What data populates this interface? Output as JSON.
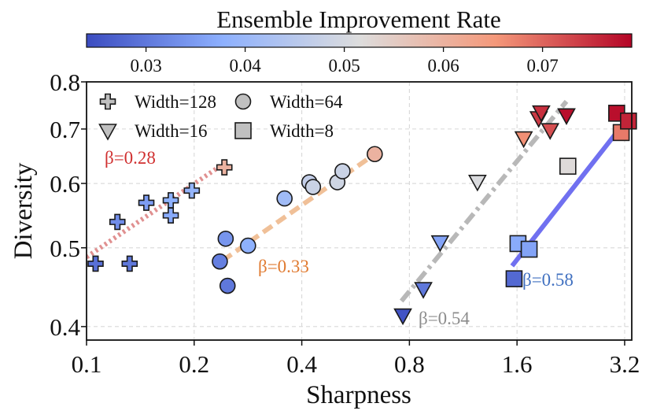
{
  "chart_data": {
    "type": "scatter",
    "title": "Ensemble Improvement Rate",
    "xlabel": "Sharpness",
    "ylabel": "Diversity",
    "xscale": "log2",
    "yscale": "log",
    "xlim": [
      0.1,
      3.35
    ],
    "ylim": [
      0.385,
      0.8
    ],
    "xticks": [
      {
        "value": 0.1,
        "label": "0.1"
      },
      {
        "value": 0.2,
        "label": "0.2"
      },
      {
        "value": 0.4,
        "label": "0.4"
      },
      {
        "value": 0.8,
        "label": "0.8"
      },
      {
        "value": 1.6,
        "label": "1.6"
      },
      {
        "value": 3.2,
        "label": "3.2"
      }
    ],
    "yticks": [
      {
        "value": 0.4,
        "label": "0.4"
      },
      {
        "value": 0.5,
        "label": "0.5"
      },
      {
        "value": 0.6,
        "label": "0.6"
      },
      {
        "value": 0.7,
        "label": "0.7"
      },
      {
        "value": 0.8,
        "label": "0.8"
      }
    ],
    "grid": true,
    "legend": {
      "placement": "top-left",
      "entries": [
        {
          "label": "Width=128",
          "marker": "plus"
        },
        {
          "label": "Width=64",
          "marker": "circle"
        },
        {
          "label": "Width=16",
          "marker": "triangle-down"
        },
        {
          "label": "Width=8",
          "marker": "square"
        }
      ]
    },
    "colorbar": {
      "label": "Ensemble Improvement Rate",
      "range": [
        0.024,
        0.079
      ],
      "colormap": "coolwarm",
      "ticks": [
        {
          "value": 0.03,
          "label": "0.03"
        },
        {
          "value": 0.04,
          "label": "0.04"
        },
        {
          "value": 0.05,
          "label": "0.05"
        },
        {
          "value": 0.06,
          "label": "0.06"
        },
        {
          "value": 0.07,
          "label": "0.07"
        }
      ]
    },
    "series": [
      {
        "name": "Width=128",
        "marker": "plus",
        "beta_label": "β=0.28",
        "beta_color": "#d03030",
        "fit": {
          "color": "#e09090",
          "style": "dotted",
          "x": [
            0.1,
            0.24
          ],
          "y": [
            0.487,
            0.633
          ]
        },
        "points": [
          {
            "x": 0.106,
            "y": 0.478,
            "c": 0.029
          },
          {
            "x": 0.132,
            "y": 0.478,
            "c": 0.03
          },
          {
            "x": 0.122,
            "y": 0.538,
            "c": 0.033
          },
          {
            "x": 0.147,
            "y": 0.568,
            "c": 0.035
          },
          {
            "x": 0.172,
            "y": 0.548,
            "c": 0.037
          },
          {
            "x": 0.172,
            "y": 0.572,
            "c": 0.038
          },
          {
            "x": 0.197,
            "y": 0.588,
            "c": 0.039
          },
          {
            "x": 0.243,
            "y": 0.628,
            "c": 0.06
          }
        ]
      },
      {
        "name": "Width=64",
        "marker": "circle",
        "beta_label": "β=0.33",
        "beta_color": "#e07a30",
        "fit": {
          "color": "#f0c098",
          "style": "dashed",
          "x": [
            0.24,
            0.64
          ],
          "y": [
            0.482,
            0.652
          ]
        },
        "points": [
          {
            "x": 0.236,
            "y": 0.481,
            "c": 0.031
          },
          {
            "x": 0.245,
            "y": 0.513,
            "c": 0.034
          },
          {
            "x": 0.248,
            "y": 0.449,
            "c": 0.03
          },
          {
            "x": 0.283,
            "y": 0.503,
            "c": 0.038
          },
          {
            "x": 0.358,
            "y": 0.575,
            "c": 0.041
          },
          {
            "x": 0.42,
            "y": 0.602,
            "c": 0.047
          },
          {
            "x": 0.43,
            "y": 0.594,
            "c": 0.048
          },
          {
            "x": 0.503,
            "y": 0.602,
            "c": 0.049
          },
          {
            "x": 0.52,
            "y": 0.621,
            "c": 0.048
          },
          {
            "x": 0.64,
            "y": 0.652,
            "c": 0.06
          }
        ]
      },
      {
        "name": "Width=16",
        "marker": "triangle-down",
        "beta_label": "β=0.54",
        "beta_color": "#8c8c8c",
        "fit": {
          "color": "#b8b8b8",
          "style": "dashdot",
          "x": [
            0.76,
            2.2
          ],
          "y": [
            0.43,
            0.757
          ]
        },
        "points": [
          {
            "x": 0.767,
            "y": 0.413,
            "c": 0.025
          },
          {
            "x": 0.875,
            "y": 0.445,
            "c": 0.03
          },
          {
            "x": 0.975,
            "y": 0.508,
            "c": 0.036
          },
          {
            "x": 1.24,
            "y": 0.603,
            "c": 0.051
          },
          {
            "x": 1.67,
            "y": 0.682,
            "c": 0.066
          },
          {
            "x": 1.84,
            "y": 0.722,
            "c": 0.074
          },
          {
            "x": 1.87,
            "y": 0.734,
            "c": 0.075
          },
          {
            "x": 1.98,
            "y": 0.698,
            "c": 0.072
          },
          {
            "x": 2.2,
            "y": 0.728,
            "c": 0.078
          }
        ]
      },
      {
        "name": "Width=8",
        "marker": "square",
        "beta_label": "β=0.58",
        "beta_color": "#4070c0",
        "fit": {
          "color": "#7070f0",
          "style": "solid",
          "x": [
            1.55,
            3.3
          ],
          "y": [
            0.475,
            0.726
          ]
        },
        "points": [
          {
            "x": 1.57,
            "y": 0.458,
            "c": 0.028
          },
          {
            "x": 1.61,
            "y": 0.506,
            "c": 0.037
          },
          {
            "x": 1.73,
            "y": 0.498,
            "c": 0.036
          },
          {
            "x": 2.22,
            "y": 0.63,
            "c": 0.052
          },
          {
            "x": 3.04,
            "y": 0.732,
            "c": 0.078
          },
          {
            "x": 3.13,
            "y": 0.693,
            "c": 0.068
          },
          {
            "x": 3.28,
            "y": 0.716,
            "c": 0.076
          }
        ]
      }
    ]
  }
}
